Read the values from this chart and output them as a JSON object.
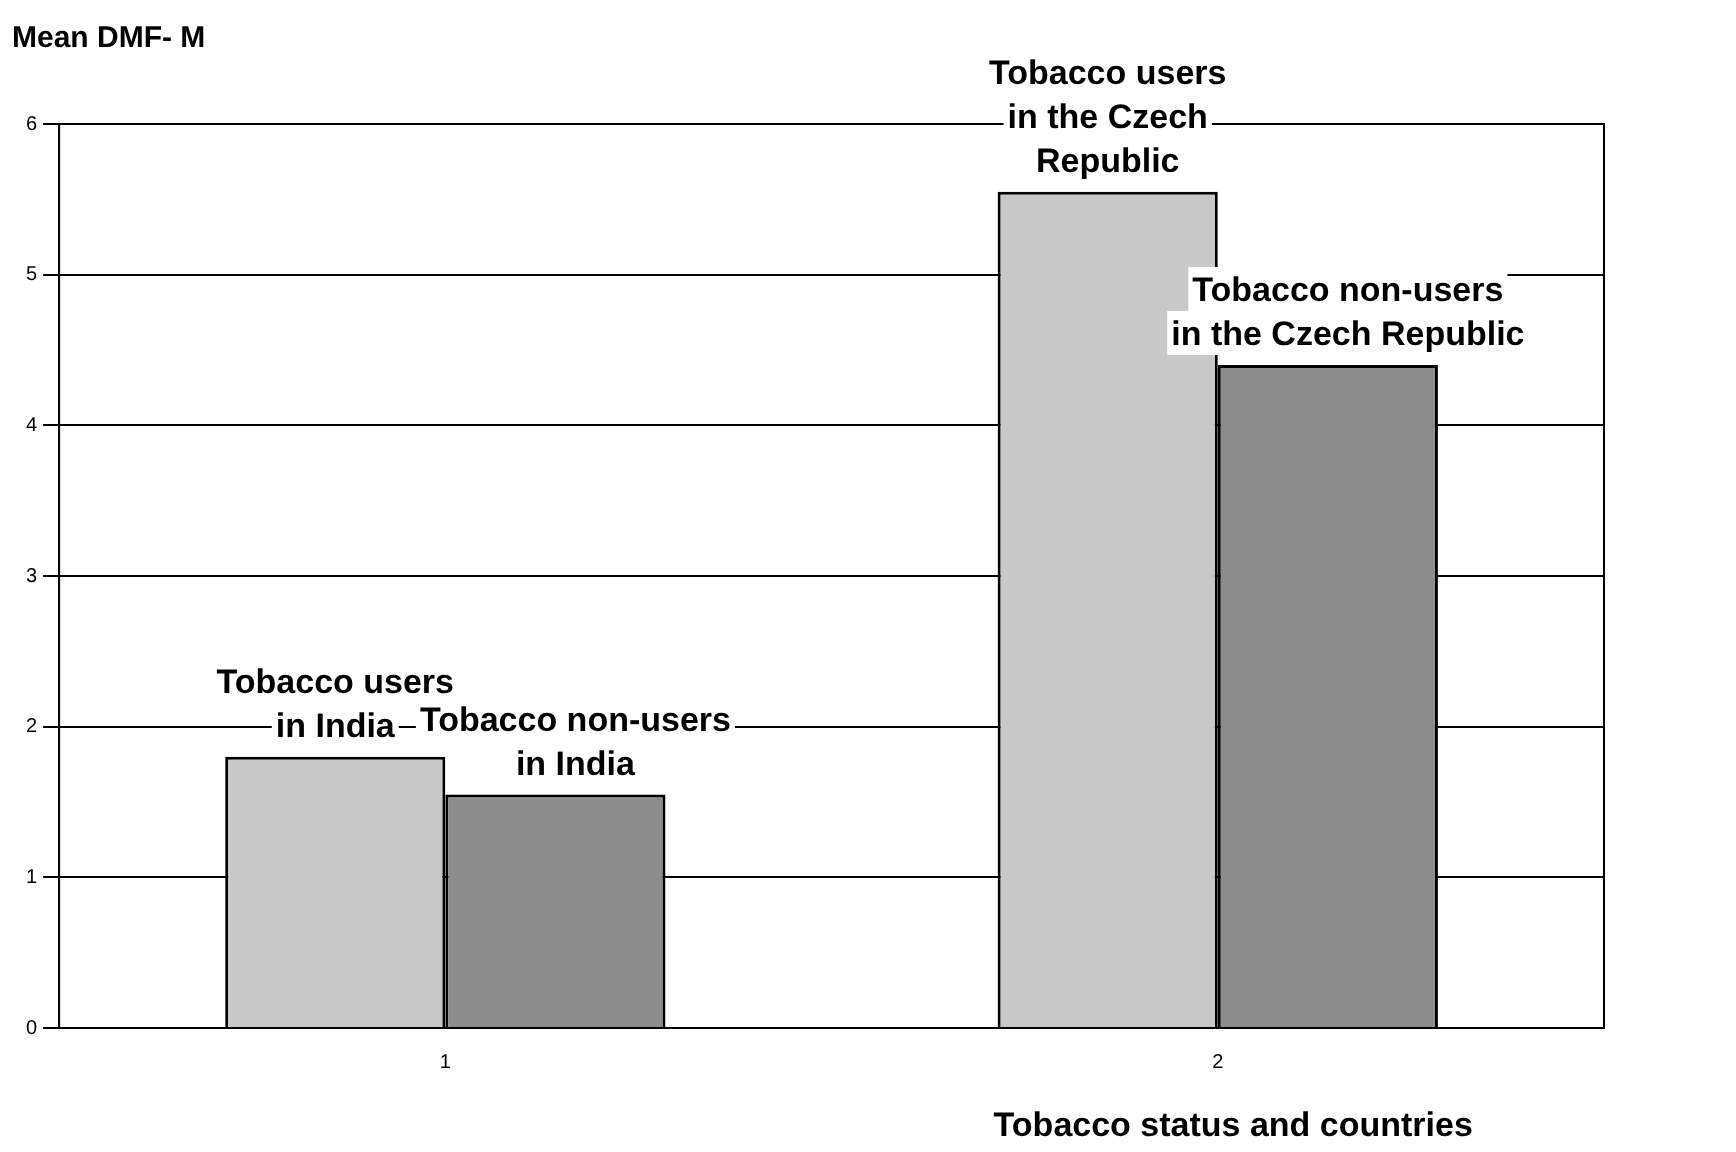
{
  "chart_data": {
    "type": "bar",
    "ylabel": "Mean DMF- M",
    "xlabel": "Tobacco status and countries",
    "categories": [
      "1",
      "2"
    ],
    "series": [
      {
        "name": "Tobacco users\nin India",
        "color": "#c8c8c8",
        "values": [
          1.8,
          null
        ]
      },
      {
        "name": "Tobacco non-users\nin India",
        "color": "#8c8c8c",
        "values": [
          1.55,
          null
        ]
      },
      {
        "name": "Tobacco users\nin the Czech\nRepublic",
        "color": "#c8c8c8",
        "values": [
          null,
          5.55
        ]
      },
      {
        "name": "Tobacco non-users\nin the Czech Republic",
        "color": "#8c8c8c",
        "values": [
          null,
          4.4
        ]
      }
    ],
    "ylim": [
      0,
      6
    ],
    "yticks": [
      0,
      1,
      2,
      3,
      4,
      5,
      6
    ],
    "grid": "y",
    "legend": false
  }
}
